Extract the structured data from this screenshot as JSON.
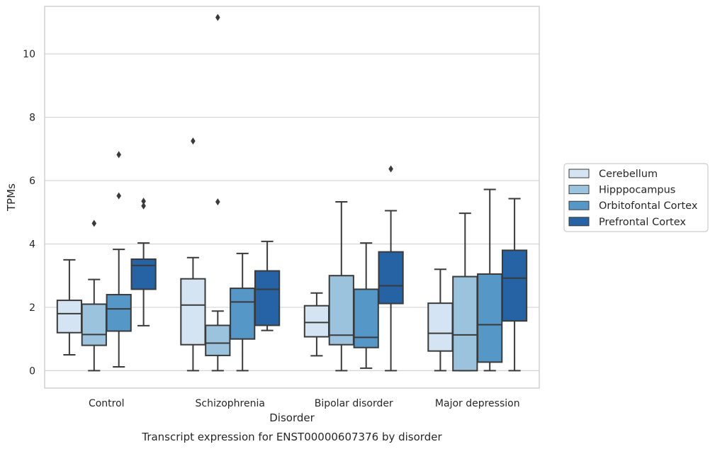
{
  "chart_data": {
    "type": "box",
    "caption": "Transcript expression for ENST00000607376 by disorder",
    "xlabel": "Disorder",
    "ylabel": "TPMs",
    "ylim": [
      -0.55,
      11.5
    ],
    "yticks": [
      0,
      2,
      4,
      6,
      8,
      10
    ],
    "grid": "horizontal",
    "legend_position": "right",
    "categories": [
      "Control",
      "Schizophrenia",
      "Bipolar disorder",
      "Major depression"
    ],
    "series": [
      {
        "name": "Cerebellum",
        "color": "#d4e4f2",
        "boxes": [
          {
            "whisker_low": 0.5,
            "q1": 1.2,
            "median": 1.8,
            "q3": 2.22,
            "whisker_high": 3.5,
            "outliers": []
          },
          {
            "whisker_low": 0.0,
            "q1": 0.82,
            "median": 2.07,
            "q3": 2.9,
            "whisker_high": 3.57,
            "outliers": [
              7.25
            ]
          },
          {
            "whisker_low": 0.47,
            "q1": 1.07,
            "median": 1.52,
            "q3": 2.05,
            "whisker_high": 2.45,
            "outliers": []
          },
          {
            "whisker_low": 0.0,
            "q1": 0.62,
            "median": 1.18,
            "q3": 2.13,
            "whisker_high": 3.2,
            "outliers": []
          }
        ]
      },
      {
        "name": "Hipppocampus",
        "color": "#9cc3dd",
        "boxes": [
          {
            "whisker_low": 0.0,
            "q1": 0.8,
            "median": 1.14,
            "q3": 2.1,
            "whisker_high": 2.88,
            "outliers": [
              4.65
            ]
          },
          {
            "whisker_low": 0.0,
            "q1": 0.48,
            "median": 0.87,
            "q3": 1.43,
            "whisker_high": 1.88,
            "outliers": [
              5.33,
              11.15
            ]
          },
          {
            "whisker_low": 0.0,
            "q1": 0.82,
            "median": 1.12,
            "q3": 3.0,
            "whisker_high": 5.33,
            "outliers": []
          },
          {
            "whisker_low": 0.0,
            "q1": 0.0,
            "median": 1.13,
            "q3": 2.97,
            "whisker_high": 4.97,
            "outliers": []
          }
        ]
      },
      {
        "name": "Orbitofontal Cortex",
        "color": "#5597c6",
        "boxes": [
          {
            "whisker_low": 0.12,
            "q1": 1.25,
            "median": 1.95,
            "q3": 2.4,
            "whisker_high": 3.83,
            "outliers": [
              5.52,
              6.82
            ]
          },
          {
            "whisker_low": 0.0,
            "q1": 1.0,
            "median": 2.17,
            "q3": 2.6,
            "whisker_high": 3.7,
            "outliers": []
          },
          {
            "whisker_low": 0.08,
            "q1": 0.73,
            "median": 1.05,
            "q3": 2.57,
            "whisker_high": 4.03,
            "outliers": []
          },
          {
            "whisker_low": 0.0,
            "q1": 0.27,
            "median": 1.45,
            "q3": 3.05,
            "whisker_high": 5.72,
            "outliers": []
          }
        ]
      },
      {
        "name": "Prefrontal Cortex",
        "color": "#2563a4",
        "boxes": [
          {
            "whisker_low": 1.42,
            "q1": 2.57,
            "median": 3.32,
            "q3": 3.52,
            "whisker_high": 4.03,
            "outliers": [
              5.2,
              5.35
            ]
          },
          {
            "whisker_low": 1.27,
            "q1": 1.43,
            "median": 2.57,
            "q3": 3.15,
            "whisker_high": 4.08,
            "outliers": []
          },
          {
            "whisker_low": 0.0,
            "q1": 2.12,
            "median": 2.68,
            "q3": 3.75,
            "whisker_high": 5.05,
            "outliers": [
              6.37
            ]
          },
          {
            "whisker_low": 0.0,
            "q1": 1.57,
            "median": 2.92,
            "q3": 3.8,
            "whisker_high": 5.43,
            "outliers": []
          }
        ]
      }
    ]
  }
}
